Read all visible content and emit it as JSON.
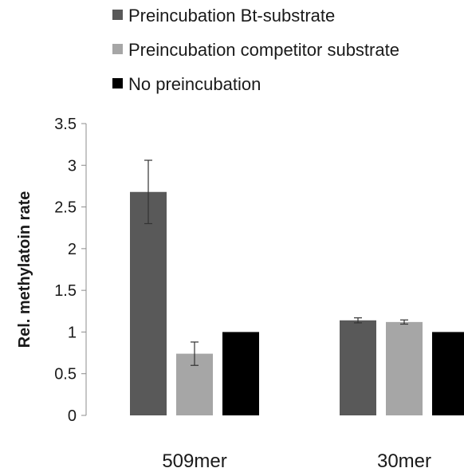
{
  "chart_data": {
    "type": "bar",
    "title": "",
    "xlabel": "",
    "ylabel": "Rel. methylatoin rate",
    "ylim": [
      0,
      3.5
    ],
    "yticks": [
      "0",
      "0.5",
      "1",
      "1.5",
      "2",
      "2.5",
      "3",
      "3.5"
    ],
    "categories": [
      "509mer",
      "30mer"
    ],
    "series": [
      {
        "name": "Preincubation Bt-substrate",
        "color": "#595959",
        "values": [
          2.68,
          1.14
        ],
        "errors": [
          0.38,
          0.03
        ]
      },
      {
        "name": "Preincubation competitor substrate",
        "color": "#a6a6a6",
        "values": [
          0.74,
          1.12
        ],
        "errors": [
          0.14,
          0.025
        ]
      },
      {
        "name": "No preincubation",
        "color": "#000000",
        "values": [
          1.0,
          1.0
        ],
        "errors": [
          0,
          0
        ]
      }
    ],
    "legend_position": "top-left",
    "grid": false
  }
}
